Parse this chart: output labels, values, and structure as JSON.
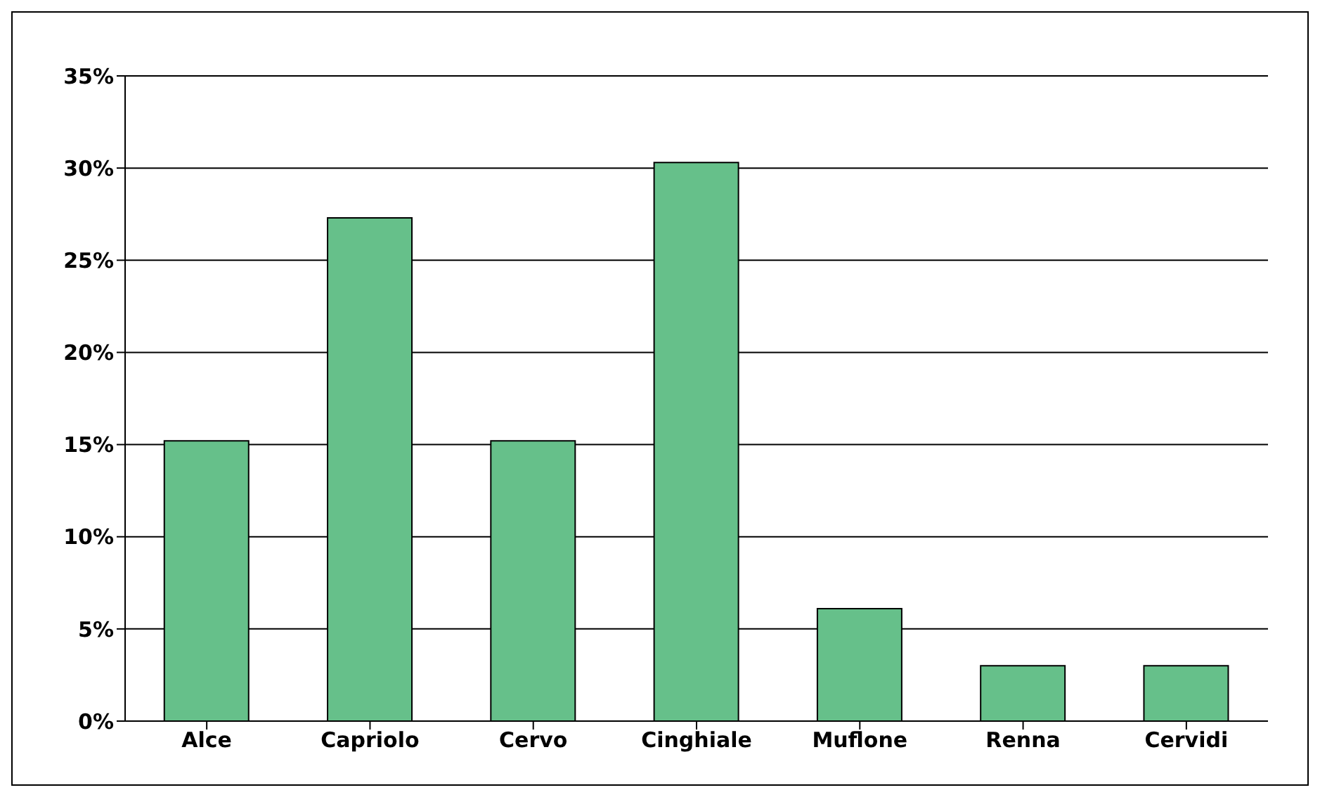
{
  "chart_data": {
    "type": "bar",
    "categories": [
      "Alce",
      "Capriolo",
      "Cervo",
      "Cinghiale",
      "Muflone",
      "Renna",
      "Cervidi"
    ],
    "values": [
      15.2,
      27.3,
      15.2,
      30.3,
      6.1,
      3.0,
      3.0
    ],
    "color": "#66c08a",
    "ylim": [
      0,
      35
    ],
    "yticks": [
      {
        "value": 0,
        "label": "0%"
      },
      {
        "value": 5,
        "label": "5%"
      },
      {
        "value": 10,
        "label": "10%"
      },
      {
        "value": 15,
        "label": "15%"
      },
      {
        "value": 20,
        "label": "20%"
      },
      {
        "value": 25,
        "label": "25%"
      },
      {
        "value": 30,
        "label": "30%"
      },
      {
        "value": 35,
        "label": "35%"
      }
    ],
    "grid": "y",
    "legend": false
  }
}
